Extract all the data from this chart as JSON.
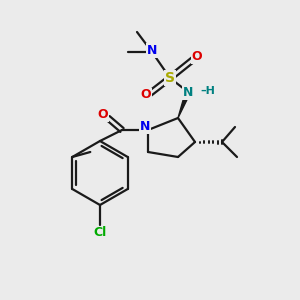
{
  "background_color": "#ebebeb",
  "bond_color": "#1a1a1a",
  "atom_colors": {
    "N": "#0000ee",
    "N2": "#008080",
    "O": "#dd0000",
    "S": "#aaaa00",
    "Cl": "#00aa00",
    "C": "#1a1a1a"
  },
  "figsize": [
    3.0,
    3.0
  ],
  "dpi": 100
}
